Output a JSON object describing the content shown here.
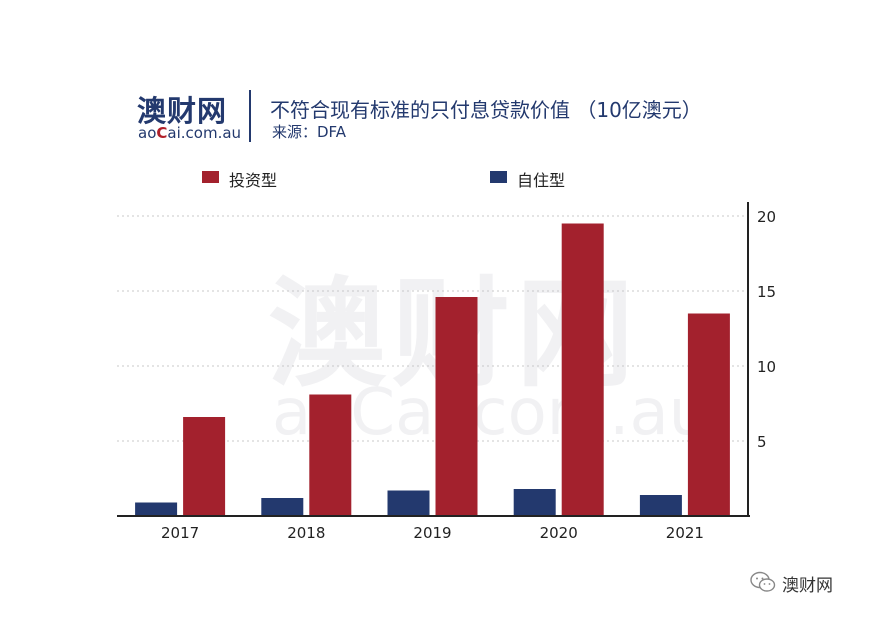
{
  "header": {
    "logo_cn": "澳财网",
    "logo_en_prefix": "a",
    "logo_en_mid": "o",
    "logo_en_c": "C",
    "logo_en_suffix": "ai.com.au",
    "title": "不符合现有标准的只付息贷款价值 （10亿澳元）",
    "source": "来源：DFA"
  },
  "watermark": {
    "cn": "澳财网",
    "en": "aoCai.com.au"
  },
  "footer": {
    "brand": "澳财网"
  },
  "colors": {
    "investor": "#a3212d",
    "owner_occupier": "#23396e",
    "text_dark": "#222222",
    "grid": "#c8c8c8"
  },
  "chart_data": {
    "type": "bar",
    "categories": [
      "2017",
      "2018",
      "2019",
      "2020",
      "2021"
    ],
    "series": [
      {
        "name": "自住型",
        "color": "#23396e",
        "values": [
          0.9,
          1.2,
          1.7,
          1.8,
          1.4
        ]
      },
      {
        "name": "投资型",
        "color": "#a3212d",
        "values": [
          6.6,
          8.1,
          14.6,
          19.5,
          13.5
        ]
      }
    ],
    "legend_order": [
      "投资型",
      "自住型"
    ],
    "y_ticks": [
      5,
      10,
      15,
      20
    ],
    "ylim": [
      0,
      21.5
    ],
    "y_axis_side": "right",
    "grid": true,
    "legend_position": "top"
  }
}
